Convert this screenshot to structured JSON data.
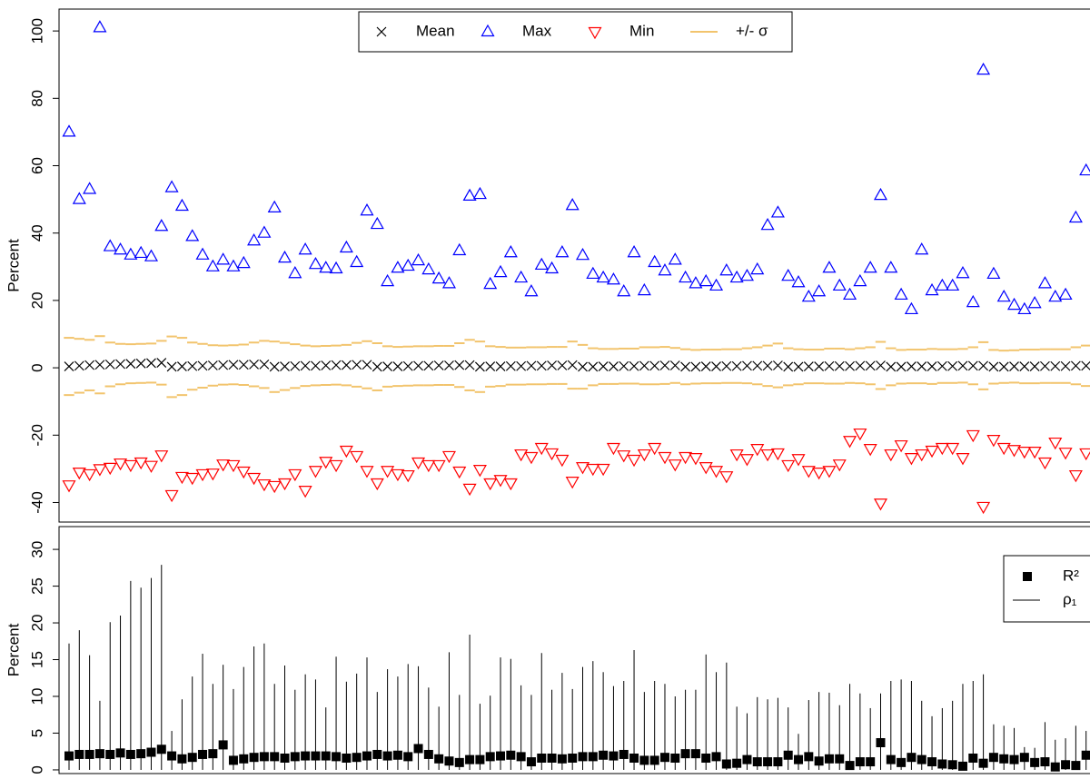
{
  "chart_data": [
    {
      "type": "scatter",
      "y_label": "Percent",
      "ylim": [
        -45.8,
        106.5
      ],
      "yticks": [
        -40,
        -20,
        0,
        20,
        40,
        60,
        80,
        100
      ],
      "legend": "top",
      "series": [
        {
          "name": "Mean",
          "marker": "x",
          "color": "#000000",
          "values": [
            0.4,
            0.6,
            0.8,
            0.9,
            1.0,
            1.1,
            1.2,
            1.3,
            1.4,
            1.5,
            0.3,
            0.4,
            0.5,
            0.6,
            0.7,
            0.8,
            0.9,
            0.9,
            1.0,
            1.0,
            0.3,
            0.4,
            0.5,
            0.6,
            0.6,
            0.7,
            0.8,
            0.8,
            0.9,
            0.9,
            0.3,
            0.4,
            0.4,
            0.5,
            0.6,
            0.6,
            0.7,
            0.7,
            0.8,
            0.8,
            0.3,
            0.4,
            0.4,
            0.5,
            0.5,
            0.6,
            0.6,
            0.7,
            0.7,
            0.8,
            0.3,
            0.3,
            0.4,
            0.4,
            0.5,
            0.5,
            0.6,
            0.6,
            0.7,
            0.7,
            0.3,
            0.3,
            0.4,
            0.4,
            0.5,
            0.5,
            0.6,
            0.6,
            0.6,
            0.7,
            0.3,
            0.3,
            0.4,
            0.4,
            0.5,
            0.5,
            0.5,
            0.6,
            0.6,
            0.7,
            0.3,
            0.3,
            0.4,
            0.4,
            0.4,
            0.5,
            0.5,
            0.6,
            0.6,
            0.6,
            0.3,
            0.3,
            0.4,
            0.4,
            0.4,
            0.5,
            0.5,
            0.5,
            0.6,
            0.6
          ]
        },
        {
          "name": "Max",
          "marker": "triangle-up",
          "color": "#0000ff",
          "values": [
            70,
            50,
            53,
            101,
            36,
            35,
            33.5,
            34,
            33,
            42,
            53.5,
            48,
            39,
            33.5,
            30,
            32,
            30,
            31,
            37.7,
            40,
            47.5,
            32.6,
            28,
            35,
            30.7,
            29.6,
            29.4,
            35.6,
            31.3,
            46.6,
            42.6,
            25.6,
            29.6,
            30.2,
            31.8,
            29.1,
            26.4,
            25,
            34.8,
            51,
            51.5,
            24.8,
            28.3,
            34.2,
            26.7,
            22.6,
            30.5,
            29.4,
            34.2,
            48.2,
            33.4,
            27.8,
            26.7,
            26.1,
            22.6,
            34.2,
            22.9,
            31.3,
            28.8,
            32,
            26.7,
            25,
            25.6,
            24.3,
            28.8,
            26.7,
            27.2,
            29.1,
            42.3,
            46,
            27.2,
            25.3,
            21,
            22.6,
            29.6,
            24.3,
            21.6,
            25.6,
            29.6,
            51.2,
            29.6,
            21.6,
            17.3,
            35,
            22.9,
            24.3,
            24.3,
            28,
            19.4,
            88.4,
            27.8,
            21,
            18.6,
            17.3,
            19.1,
            25,
            21,
            21.6,
            44.5,
            58.5
          ]
        },
        {
          "name": "Min",
          "marker": "triangle-down",
          "color": "#ff0000",
          "values": [
            -34.8,
            -31,
            -31.5,
            -30,
            -29.6,
            -28.3,
            -28.8,
            -28,
            -29,
            -25.9,
            -37.7,
            -32.3,
            -32.6,
            -31.5,
            -31.3,
            -28.6,
            -28.8,
            -30.7,
            -32.6,
            -34.5,
            -35,
            -34.2,
            -31.5,
            -36.4,
            -30.5,
            -27.8,
            -28.8,
            -24.5,
            -26.1,
            -30.5,
            -34.2,
            -30.5,
            -31.5,
            -31.8,
            -28,
            -28.8,
            -28.8,
            -26.1,
            -30.7,
            -35.8,
            -30.2,
            -34.2,
            -33.2,
            -34.2,
            -25.6,
            -26.4,
            -23.7,
            -25.3,
            -27.2,
            -33.7,
            -29.4,
            -29.9,
            -29.9,
            -23.7,
            -25.9,
            -27.2,
            -25.6,
            -23.7,
            -26.4,
            -28.6,
            -26.4,
            -26.7,
            -29.4,
            -30.5,
            -32.1,
            -25.6,
            -27,
            -24,
            -25.6,
            -25.3,
            -28.8,
            -27,
            -30.5,
            -31,
            -30.5,
            -28.6,
            -21.6,
            -19.4,
            -24,
            -40.2,
            -25.6,
            -22.9,
            -26.7,
            -25.6,
            -24.5,
            -23.7,
            -23.7,
            -26.7,
            -19.9,
            -41.2,
            -21.3,
            -23.7,
            -24.3,
            -24.8,
            -24.8,
            -28,
            -22.1,
            -25.1,
            -31.8,
            -25.3
          ]
        },
        {
          "name": "+/- σ",
          "marker": "dash",
          "color": "#f2c46d",
          "values": [
            8.5,
            8,
            7.5,
            8.5,
            6.5,
            6,
            5.8,
            5.8,
            5.8,
            6.5,
            9,
            8.5,
            7,
            6.5,
            6,
            5.8,
            5.8,
            6,
            6.5,
            7,
            7.5,
            7,
            6.5,
            6,
            5.8,
            5.8,
            5.8,
            6,
            6.5,
            7,
            7,
            6,
            5.8,
            5.8,
            5.8,
            5.8,
            5.8,
            5.8,
            6.5,
            7.5,
            7.5,
            6,
            5.8,
            5.5,
            5.5,
            5.5,
            5.5,
            5.5,
            5.5,
            7,
            6.5,
            5.5,
            5.2,
            5.2,
            5.2,
            5.2,
            5.5,
            5.5,
            5.5,
            5.2,
            5.2,
            5,
            5,
            5,
            5,
            5,
            5.2,
            5.5,
            6,
            6.5,
            5.5,
            5.2,
            5,
            5,
            5.2,
            5.2,
            5,
            5.2,
            5.5,
            7,
            5.5,
            5,
            5,
            5,
            5.2,
            5,
            5,
            5,
            5.5,
            7,
            5,
            4.8,
            4.8,
            5,
            5,
            5,
            5,
            5,
            5.5,
            6
          ]
        }
      ]
    },
    {
      "type": "scatter",
      "y_label": "Percent",
      "ylim": [
        -0.5,
        33.1
      ],
      "yticks": [
        0,
        5,
        10,
        15,
        20,
        25,
        30
      ],
      "legend": "right",
      "series": [
        {
          "name": "R²",
          "marker": "square",
          "color": "#000000",
          "values": [
            1.9,
            2.1,
            2.1,
            2.2,
            2.1,
            2.3,
            2.1,
            2.2,
            2.4,
            2.8,
            1.9,
            1.5,
            1.7,
            2.1,
            2.2,
            3.4,
            1.3,
            1.5,
            1.7,
            1.8,
            1.8,
            1.6,
            1.8,
            1.9,
            1.9,
            1.9,
            1.8,
            1.6,
            1.7,
            1.9,
            2.1,
            1.9,
            2.0,
            1.8,
            2.9,
            2.1,
            1.5,
            1.2,
            1.0,
            1.4,
            1.4,
            1.8,
            1.9,
            2.0,
            1.8,
            1.1,
            1.6,
            1.6,
            1.5,
            1.6,
            1.8,
            1.8,
            2.0,
            1.9,
            2.1,
            1.6,
            1.3,
            1.3,
            1.7,
            1.6,
            2.2,
            2.2,
            1.6,
            1.8,
            0.8,
            0.9,
            1.4,
            1.1,
            1.1,
            1.1,
            2.0,
            1.4,
            1.8,
            1.2,
            1.5,
            1.5,
            0.6,
            1.1,
            1.1,
            3.7,
            1.4,
            1.0,
            1.7,
            1.4,
            1.1,
            0.8,
            0.7,
            0.5,
            1.6,
            0.9,
            1.7,
            1.5,
            1.4,
            1.7,
            1.0,
            1.1,
            0.4,
            0.7,
            0.6,
            2.0
          ]
        },
        {
          "name": "ρ₁",
          "marker": "line",
          "color": "#000000",
          "values": [
            17.2,
            19,
            15.6,
            9.4,
            20.1,
            21,
            25.7,
            24.8,
            26.1,
            27.9,
            5.3,
            9.6,
            12.7,
            15.8,
            11.7,
            14.3,
            11,
            14,
            16.8,
            17.2,
            11.7,
            14.2,
            10.9,
            13,
            12.3,
            8.5,
            15.4,
            12,
            13.1,
            15.3,
            10.6,
            13.7,
            12.7,
            14.4,
            14.1,
            11.2,
            8.6,
            16,
            10.2,
            18.4,
            9,
            10.1,
            15.3,
            15.1,
            11.5,
            10.2,
            15.9,
            10.9,
            13.2,
            11,
            14,
            14.8,
            13.3,
            11.4,
            12.1,
            16.3,
            10.6,
            12.1,
            11.7,
            10,
            10.9,
            10.9,
            15.7,
            13.3,
            14.6,
            8.6,
            7.7,
            9.9,
            9.6,
            9.8,
            8.5,
            4.9,
            9.5,
            10.6,
            10.5,
            8.8,
            11.7,
            10.4,
            8.4,
            10.4,
            12.1,
            12.3,
            12.1,
            9.4,
            7.3,
            8.4,
            9.4,
            11.7,
            12.1,
            13,
            6.2,
            6,
            5.7,
            3.1,
            3,
            6.5,
            4.1,
            4.3,
            6,
            5.3
          ]
        }
      ]
    }
  ]
}
